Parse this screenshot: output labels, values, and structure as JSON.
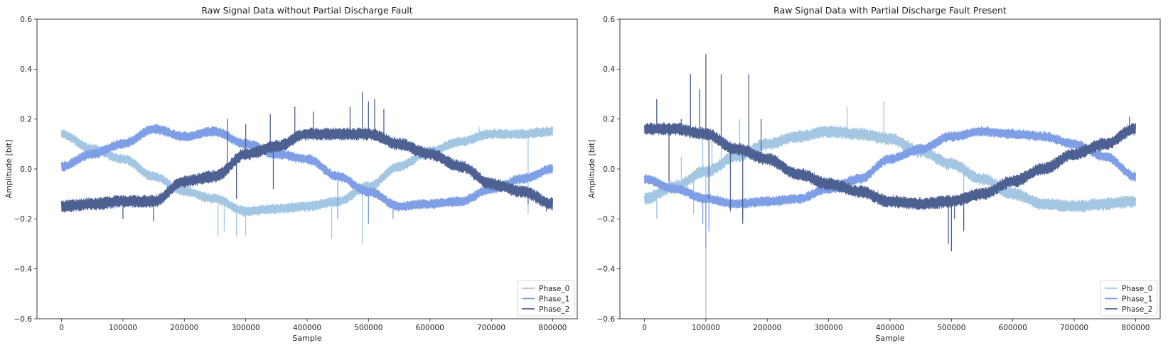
{
  "chart_data": [
    {
      "type": "line",
      "title": "Raw Signal Data without Partial Discharge Fault",
      "xlabel": "Sample",
      "ylabel": "Amplitude [bit]",
      "xlim": [
        -40000,
        840000
      ],
      "ylim": [
        -0.6,
        0.6
      ],
      "x_ticks": [
        0,
        100000,
        200000,
        300000,
        400000,
        500000,
        600000,
        700000,
        800000
      ],
      "x_tick_labels": [
        "0",
        "100000",
        "200000",
        "300000",
        "400000",
        "500000",
        "600000",
        "700000",
        "800000"
      ],
      "y_ticks": [
        -0.6,
        -0.4,
        -0.2,
        0.0,
        0.2,
        0.4,
        0.6
      ],
      "y_tick_labels": [
        "−0.6",
        "−0.4",
        "−0.2",
        "0.0",
        "0.2",
        "0.4",
        "0.6"
      ],
      "grid": false,
      "legend_position": "lower-right",
      "series": [
        {
          "name": "Phase_0",
          "color": "#a3c6e3",
          "x": [
            0,
            50000,
            100000,
            150000,
            200000,
            250000,
            300000,
            350000,
            400000,
            450000,
            500000,
            550000,
            600000,
            650000,
            700000,
            750000,
            800000
          ],
          "values": [
            0.14,
            0.08,
            0.04,
            -0.03,
            -0.09,
            -0.12,
            -0.17,
            -0.16,
            -0.15,
            -0.13,
            -0.07,
            0.01,
            0.07,
            0.11,
            0.14,
            0.14,
            0.15
          ],
          "noise": 0.02,
          "spikes": [
            [
              255000,
              -0.27
            ],
            [
              265000,
              -0.25
            ],
            [
              285000,
              -0.27
            ],
            [
              300000,
              -0.27
            ],
            [
              440000,
              -0.28
            ],
            [
              490000,
              -0.3
            ],
            [
              500000,
              -0.22
            ],
            [
              680000,
              0.17
            ],
            [
              760000,
              -0.18
            ],
            [
              775000,
              0.17
            ]
          ]
        },
        {
          "name": "Phase_1",
          "color": "#7e9ee6",
          "x": [
            0,
            50000,
            100000,
            150000,
            200000,
            250000,
            300000,
            350000,
            400000,
            450000,
            500000,
            550000,
            600000,
            650000,
            700000,
            750000,
            800000
          ],
          "values": [
            0.01,
            0.06,
            0.1,
            0.16,
            0.13,
            0.15,
            0.1,
            0.06,
            0.04,
            -0.03,
            -0.09,
            -0.15,
            -0.14,
            -0.13,
            -0.08,
            -0.04,
            0.0
          ],
          "noise": 0.02,
          "spikes": [
            [
              450000,
              -0.2
            ],
            [
              500000,
              -0.22
            ],
            [
              540000,
              -0.2
            ],
            [
              580000,
              -0.13
            ]
          ]
        },
        {
          "name": "Phase_2",
          "color": "#4c6191",
          "x": [
            0,
            50000,
            100000,
            150000,
            200000,
            250000,
            300000,
            350000,
            400000,
            450000,
            500000,
            550000,
            600000,
            650000,
            700000,
            750000,
            800000
          ],
          "values": [
            -0.15,
            -0.14,
            -0.13,
            -0.13,
            -0.05,
            -0.03,
            0.06,
            0.09,
            0.14,
            0.14,
            0.14,
            0.1,
            0.06,
            0.01,
            -0.06,
            -0.09,
            -0.14
          ],
          "noise": 0.025,
          "spikes": [
            [
              100000,
              -0.2
            ],
            [
              150000,
              -0.21
            ],
            [
              270000,
              0.2
            ],
            [
              285000,
              -0.12
            ],
            [
              300000,
              0.18
            ],
            [
              340000,
              0.22
            ],
            [
              345000,
              -0.08
            ],
            [
              380000,
              0.25
            ],
            [
              410000,
              0.23
            ],
            [
              470000,
              0.25
            ],
            [
              490000,
              0.31
            ],
            [
              500000,
              0.27
            ],
            [
              510000,
              0.28
            ],
            [
              525000,
              0.24
            ],
            [
              760000,
              -0.14
            ],
            [
              790000,
              -0.17
            ]
          ]
        }
      ]
    },
    {
      "type": "line",
      "title": "Raw Signal Data with Partial Discharge Fault Present",
      "xlabel": "Sample",
      "ylabel": "Amplitude [bit]",
      "xlim": [
        -40000,
        840000
      ],
      "ylim": [
        -0.6,
        0.6
      ],
      "x_ticks": [
        0,
        100000,
        200000,
        300000,
        400000,
        500000,
        600000,
        700000,
        800000
      ],
      "x_tick_labels": [
        "0",
        "100000",
        "200000",
        "300000",
        "400000",
        "500000",
        "600000",
        "700000",
        "800000"
      ],
      "y_ticks": [
        -0.6,
        -0.4,
        -0.2,
        0.0,
        0.2,
        0.4,
        0.6
      ],
      "y_tick_labels": [
        "−0.6",
        "−0.4",
        "−0.2",
        "0.0",
        "0.2",
        "0.4",
        "0.6"
      ],
      "grid": false,
      "legend_position": "lower-right",
      "series": [
        {
          "name": "Phase_0",
          "color": "#a3c6e3",
          "x": [
            0,
            50000,
            100000,
            150000,
            200000,
            250000,
            300000,
            350000,
            400000,
            450000,
            500000,
            550000,
            600000,
            650000,
            700000,
            750000,
            800000
          ],
          "values": [
            -0.12,
            -0.07,
            -0.01,
            0.05,
            0.1,
            0.13,
            0.15,
            0.14,
            0.12,
            0.07,
            0.02,
            -0.04,
            -0.1,
            -0.14,
            -0.15,
            -0.14,
            -0.13
          ],
          "noise": 0.025,
          "spikes": [
            [
              20000,
              -0.2
            ],
            [
              40000,
              0.12
            ],
            [
              60000,
              0.05
            ],
            [
              80000,
              -0.18
            ],
            [
              95000,
              0.12
            ],
            [
              100000,
              -0.6
            ],
            [
              110000,
              0.15
            ],
            [
              125000,
              0.1
            ],
            [
              155000,
              0.2
            ],
            [
              330000,
              0.25
            ],
            [
              390000,
              0.27
            ],
            [
              520000,
              -0.12
            ],
            [
              540000,
              -0.03
            ]
          ]
        },
        {
          "name": "Phase_1",
          "color": "#7e9ee6",
          "x": [
            0,
            50000,
            100000,
            150000,
            200000,
            250000,
            300000,
            350000,
            400000,
            450000,
            500000,
            550000,
            600000,
            650000,
            700000,
            750000,
            800000
          ],
          "values": [
            -0.04,
            -0.08,
            -0.12,
            -0.14,
            -0.13,
            -0.12,
            -0.08,
            -0.04,
            0.04,
            0.08,
            0.13,
            0.15,
            0.14,
            0.13,
            0.1,
            0.05,
            -0.03
          ],
          "noise": 0.02,
          "spikes": [
            [
              95000,
              -0.22
            ],
            [
              100000,
              -0.32
            ],
            [
              105000,
              -0.25
            ],
            [
              160000,
              -0.2
            ]
          ]
        },
        {
          "name": "Phase_2",
          "color": "#4c6191",
          "x": [
            0,
            50000,
            100000,
            150000,
            200000,
            250000,
            300000,
            350000,
            400000,
            450000,
            500000,
            550000,
            600000,
            650000,
            700000,
            750000,
            800000
          ],
          "values": [
            0.16,
            0.16,
            0.14,
            0.08,
            0.04,
            -0.02,
            -0.06,
            -0.09,
            -0.13,
            -0.14,
            -0.13,
            -0.1,
            -0.05,
            0.0,
            0.06,
            0.1,
            0.16
          ],
          "noise": 0.025,
          "spikes": [
            [
              20000,
              0.28
            ],
            [
              40000,
              -0.05
            ],
            [
              60000,
              0.2
            ],
            [
              75000,
              0.38
            ],
            [
              90000,
              0.32
            ],
            [
              100000,
              0.46
            ],
            [
              105000,
              -0.12
            ],
            [
              125000,
              0.38
            ],
            [
              140000,
              -0.17
            ],
            [
              160000,
              -0.22
            ],
            [
              170000,
              0.38
            ],
            [
              190000,
              0.2
            ],
            [
              300000,
              -0.08
            ],
            [
              495000,
              -0.3
            ],
            [
              500000,
              -0.33
            ],
            [
              505000,
              -0.2
            ],
            [
              520000,
              -0.25
            ],
            [
              790000,
              0.21
            ]
          ]
        }
      ]
    }
  ]
}
